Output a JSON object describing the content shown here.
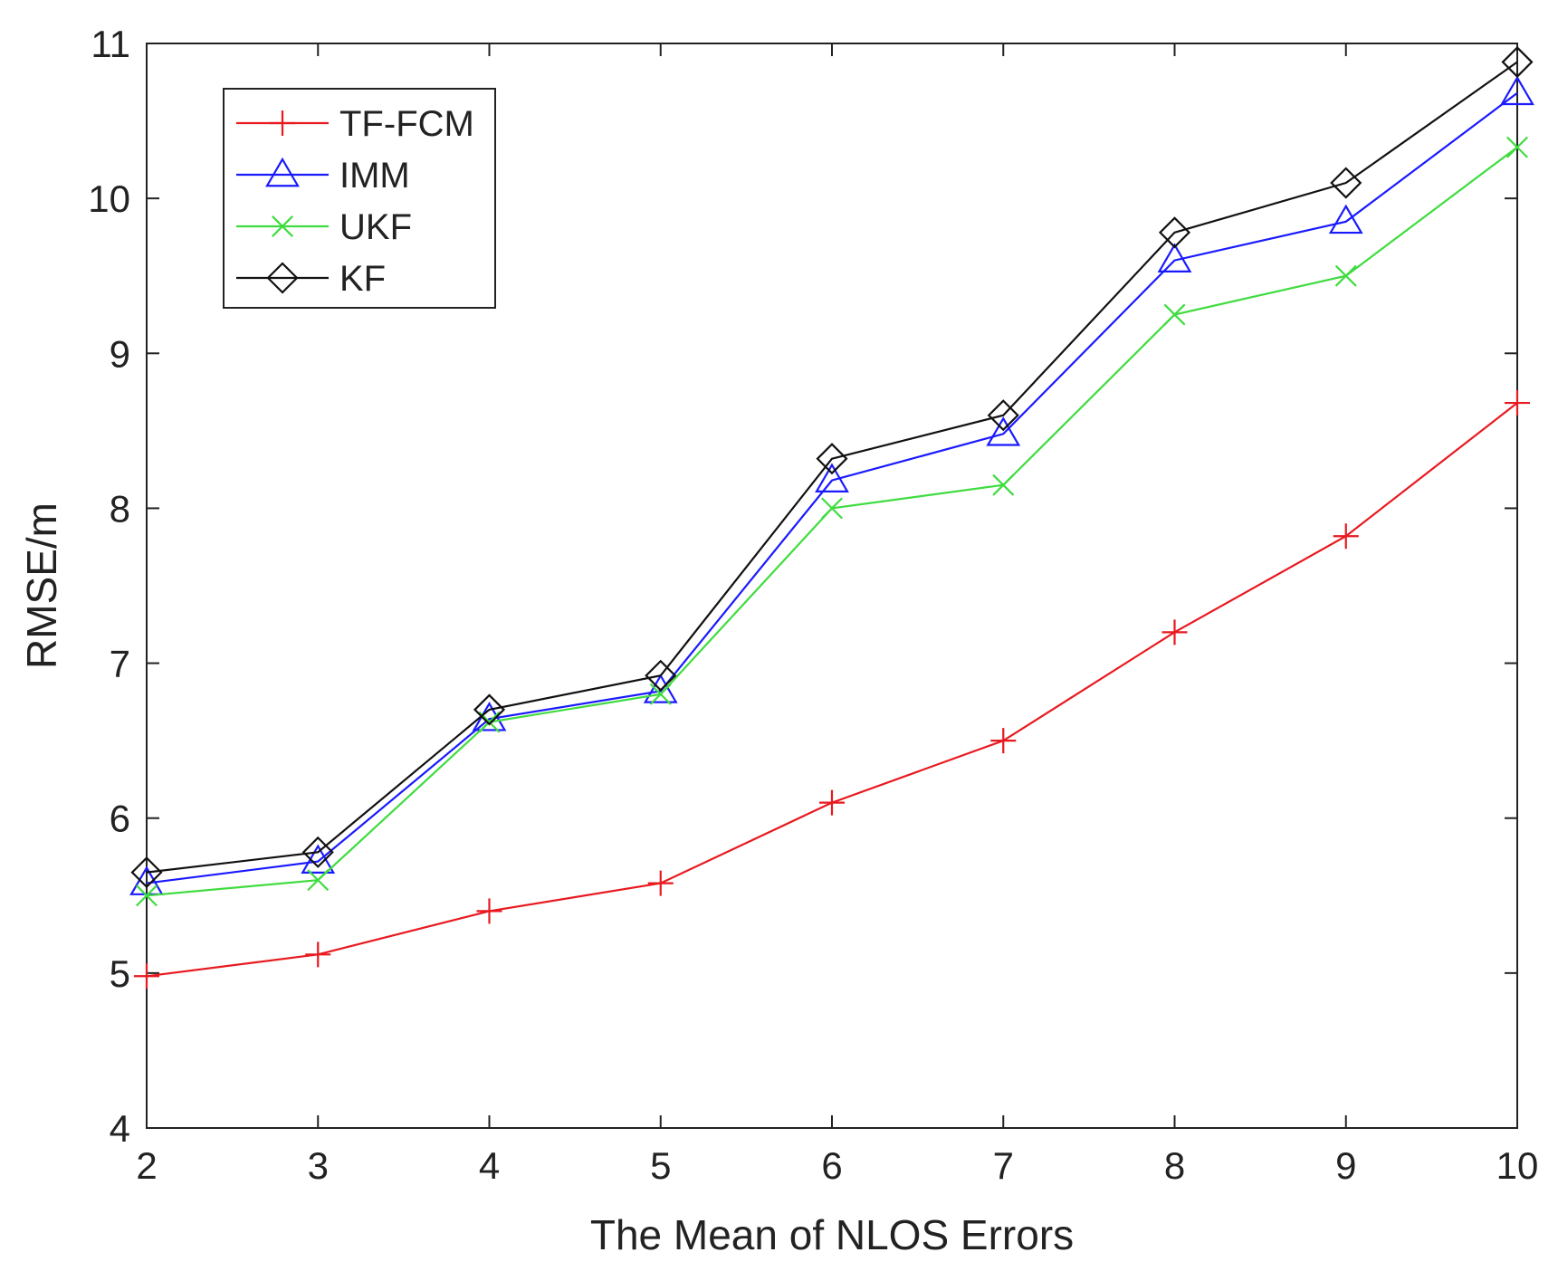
{
  "chart_data": {
    "type": "line",
    "title": "",
    "xlabel": "The Mean of NLOS Errors",
    "ylabel": "RMSE/m",
    "x": [
      2,
      3,
      4,
      5,
      6,
      7,
      8,
      9,
      10
    ],
    "xlim": [
      2,
      10
    ],
    "ylim": [
      4,
      11
    ],
    "xticks": [
      "2",
      "3",
      "4",
      "5",
      "6",
      "7",
      "8",
      "9",
      "10"
    ],
    "yticks": [
      "4",
      "5",
      "6",
      "7",
      "8",
      "9",
      "10",
      "11"
    ],
    "grid": false,
    "legend_position": "top-left",
    "series": [
      {
        "name": "TF-FCM",
        "color": "#e8191f",
        "marker": "plus",
        "values": [
          4.98,
          5.12,
          5.4,
          5.58,
          6.1,
          6.5,
          7.2,
          7.82,
          8.68
        ]
      },
      {
        "name": "IMM",
        "color": "#1a1aff",
        "marker": "triangle",
        "values": [
          5.58,
          5.72,
          6.64,
          6.82,
          8.18,
          8.48,
          9.6,
          9.85,
          10.68
        ]
      },
      {
        "name": "UKF",
        "color": "#3fdc3f",
        "marker": "x",
        "values": [
          5.5,
          5.6,
          6.62,
          6.8,
          8.0,
          8.15,
          9.25,
          9.5,
          10.33
        ]
      },
      {
        "name": "KF",
        "color": "#111111",
        "marker": "diamond",
        "values": [
          5.65,
          5.78,
          6.7,
          6.92,
          8.32,
          8.6,
          9.78,
          10.1,
          10.88
        ]
      }
    ]
  }
}
